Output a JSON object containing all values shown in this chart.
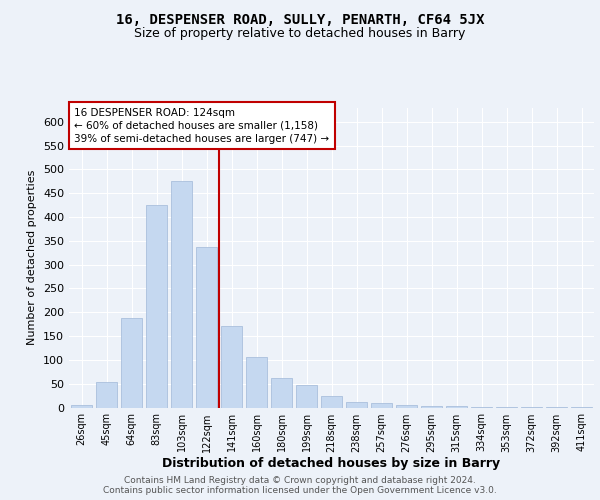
{
  "title_line1": "16, DESPENSER ROAD, SULLY, PENARTH, CF64 5JX",
  "title_line2": "Size of property relative to detached houses in Barry",
  "xlabel": "Distribution of detached houses by size in Barry",
  "ylabel": "Number of detached properties",
  "categories": [
    "26sqm",
    "45sqm",
    "64sqm",
    "83sqm",
    "103sqm",
    "122sqm",
    "141sqm",
    "160sqm",
    "180sqm",
    "199sqm",
    "218sqm",
    "238sqm",
    "257sqm",
    "276sqm",
    "295sqm",
    "315sqm",
    "334sqm",
    "353sqm",
    "372sqm",
    "392sqm",
    "411sqm"
  ],
  "values": [
    5,
    54,
    188,
    425,
    475,
    338,
    172,
    107,
    63,
    48,
    25,
    12,
    9,
    5,
    3,
    3,
    2,
    2,
    1,
    1,
    1
  ],
  "bar_color": "#c5d8f0",
  "bar_edge_color": "#a0b8d8",
  "highlight_color": "#c00000",
  "annotation_line1": "16 DESPENSER ROAD: 124sqm",
  "annotation_line2": "← 60% of detached houses are smaller (1,158)",
  "annotation_line3": "39% of semi-detached houses are larger (747) →",
  "annotation_box_color": "#c00000",
  "property_bar_index": 5,
  "ylim": [
    0,
    630
  ],
  "yticks": [
    0,
    50,
    100,
    150,
    200,
    250,
    300,
    350,
    400,
    450,
    500,
    550,
    600
  ],
  "footer_text": "Contains HM Land Registry data © Crown copyright and database right 2024.\nContains public sector information licensed under the Open Government Licence v3.0.",
  "background_color": "#edf2f9",
  "plot_background": "#edf2f9"
}
